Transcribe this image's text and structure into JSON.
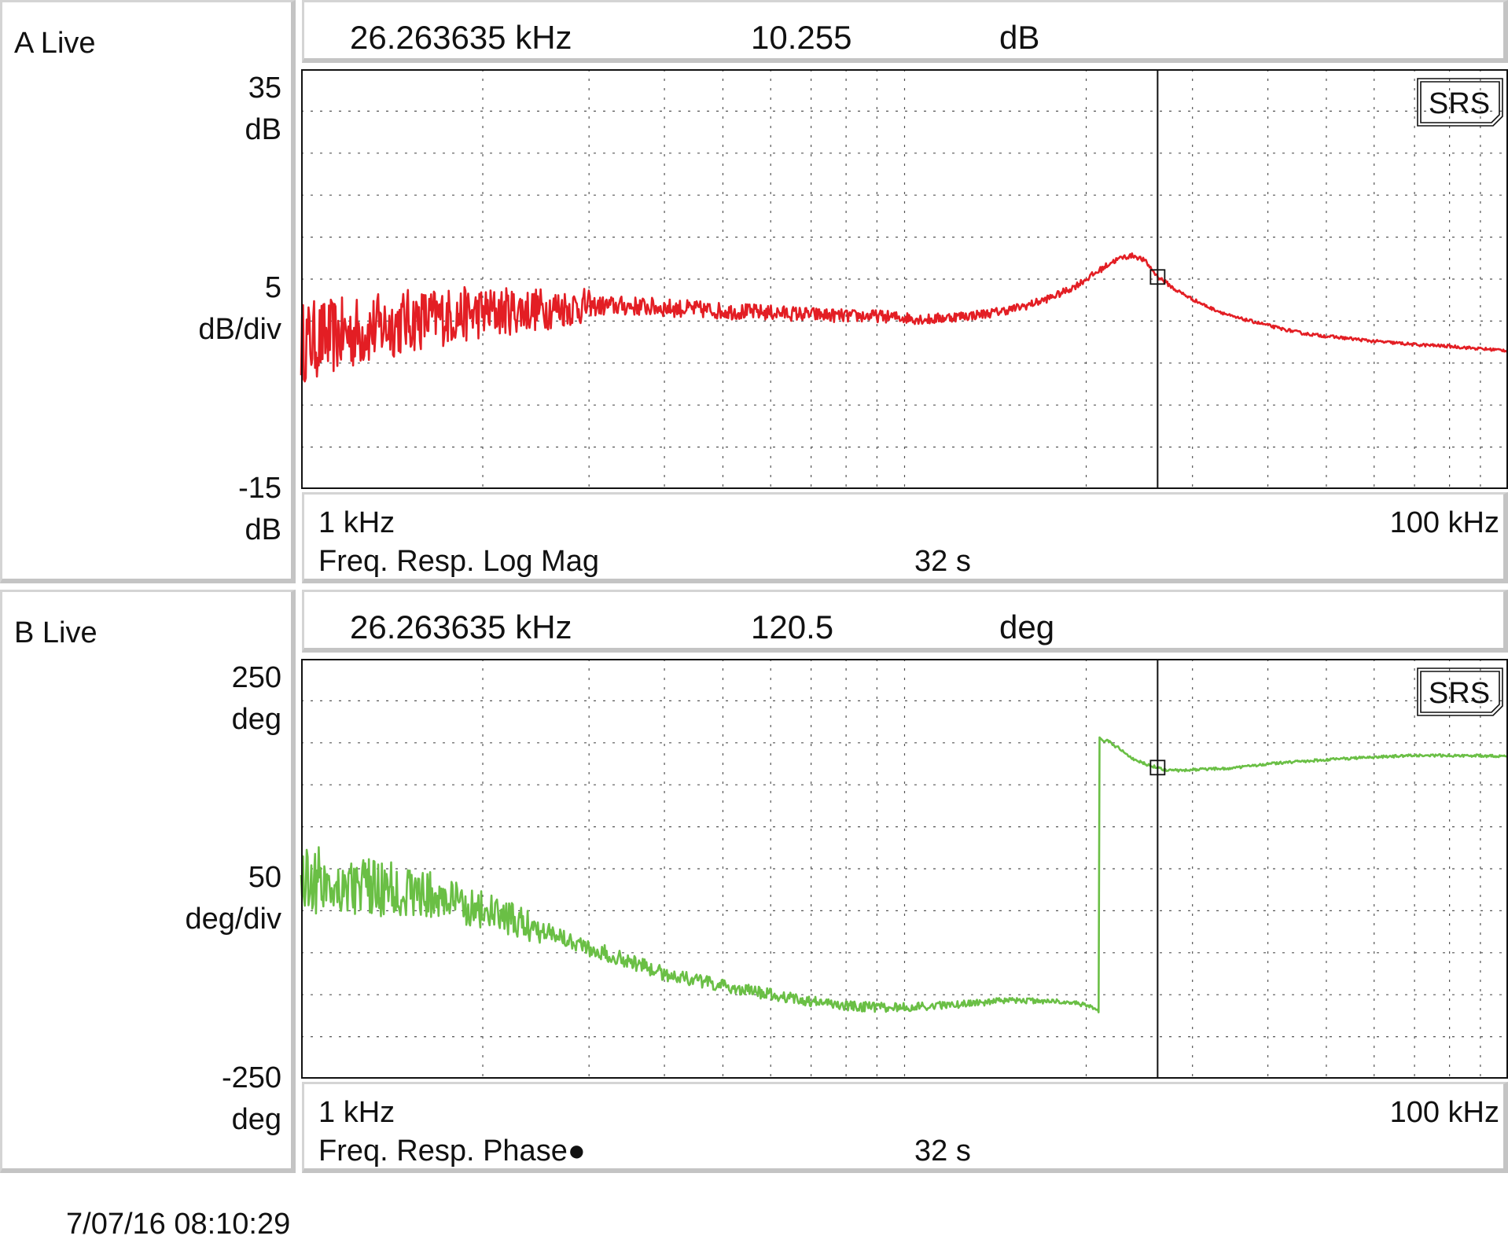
{
  "panels": [
    {
      "label": "A Live",
      "marker": {
        "freq": "26.263635 kHz",
        "value": "10.255",
        "unit": "dB"
      },
      "y_top": "35",
      "y_top_unit": "dB",
      "y_div": "5",
      "y_div_unit": "dB/div",
      "y_bottom": "-15",
      "y_bottom_unit": "dB",
      "x_start": "1 kHz",
      "x_end": "100 kHz",
      "measurement": "Freq. Resp. Log Mag",
      "time": "32 s",
      "badge": "SRS"
    },
    {
      "label": "B Live",
      "marker": {
        "freq": "26.263635 kHz",
        "value": "120.5",
        "unit": "deg"
      },
      "y_top": "250",
      "y_top_unit": "deg",
      "y_div": "50",
      "y_div_unit": "deg/div",
      "y_bottom": "-250",
      "y_bottom_unit": "deg",
      "x_start": "1 kHz",
      "x_end": "100 kHz",
      "measurement": "Freq. Resp. Phase●",
      "time": "32 s",
      "badge": "SRS"
    }
  ],
  "timestamp": "7/07/16  08:10:29",
  "chart_data": [
    {
      "type": "line",
      "x_scale": "log",
      "xlim": [
        1000,
        100000
      ],
      "ylim": [
        -15,
        35
      ],
      "y_unit": "dB",
      "grid": true,
      "marker_x": 26263.635,
      "marker_y": 10.255,
      "color": "#e31e24",
      "noise_below_hz": 3000,
      "noise_amplitude": 3.5,
      "x": [
        1000,
        1100,
        1200,
        1300,
        1500,
        1700,
        2000,
        2300,
        2600,
        3000,
        3500,
        4000,
        5000,
        6000,
        7000,
        8000,
        9000,
        10000,
        11000,
        12000,
        13000,
        14000,
        15000,
        16000,
        17000,
        18000,
        19000,
        20000,
        21000,
        22000,
        23000,
        24000,
        25000,
        26264,
        27000,
        28000,
        30000,
        32000,
        35000,
        38000,
        42000,
        46000,
        50000,
        55000,
        60000,
        65000,
        70000,
        75000,
        80000,
        90000,
        100000
      ],
      "y": [
        2.5,
        3,
        3.5,
        4,
        5,
        5.5,
        6,
        6.3,
        6.5,
        6.8,
        6.8,
        6.6,
        6.2,
        6,
        5.8,
        5.6,
        5.6,
        5.4,
        5.2,
        5.5,
        5.7,
        6.0,
        6.4,
        6.9,
        7.5,
        8.2,
        9.0,
        10.0,
        11.0,
        12.0,
        12.6,
        12.8,
        12.2,
        10.3,
        9.7,
        8.8,
        7.6,
        6.6,
        5.5,
        4.9,
        4.1,
        3.5,
        3.2,
        2.9,
        2.6,
        2.4,
        2.2,
        2.1,
        2.0,
        1.7,
        1.5
      ]
    },
    {
      "type": "line",
      "x_scale": "log",
      "xlim": [
        1000,
        100000
      ],
      "ylim": [
        -250,
        250
      ],
      "y_unit": "deg",
      "grid": true,
      "marker_x": 26263.635,
      "marker_y": 120.5,
      "color": "#6abf45",
      "noise_below_hz": 2500,
      "noise_amplitude": 30,
      "x": [
        1000,
        1100,
        1200,
        1400,
        1600,
        1800,
        2000,
        2300,
        2600,
        3000,
        3500,
        4000,
        5000,
        6000,
        7000,
        8000,
        9000,
        10000,
        12000,
        14000,
        16000,
        18000,
        20000,
        21000,
        21001,
        22000,
        23000,
        24000,
        25000,
        26264,
        27000,
        28000,
        30000,
        35000,
        40000,
        50000,
        60000,
        70000,
        80000,
        100000
      ],
      "y": [
        -10,
        -15,
        -20,
        -25,
        -30,
        -40,
        -50,
        -65,
        -75,
        -95,
        -110,
        -125,
        -140,
        -150,
        -158,
        -163,
        -165,
        -165,
        -162,
        -158,
        -157,
        -158,
        -162,
        -170,
        155,
        150,
        140,
        130,
        125,
        120.5,
        118,
        117,
        118,
        120,
        125,
        130,
        133,
        135,
        135,
        134
      ]
    }
  ]
}
